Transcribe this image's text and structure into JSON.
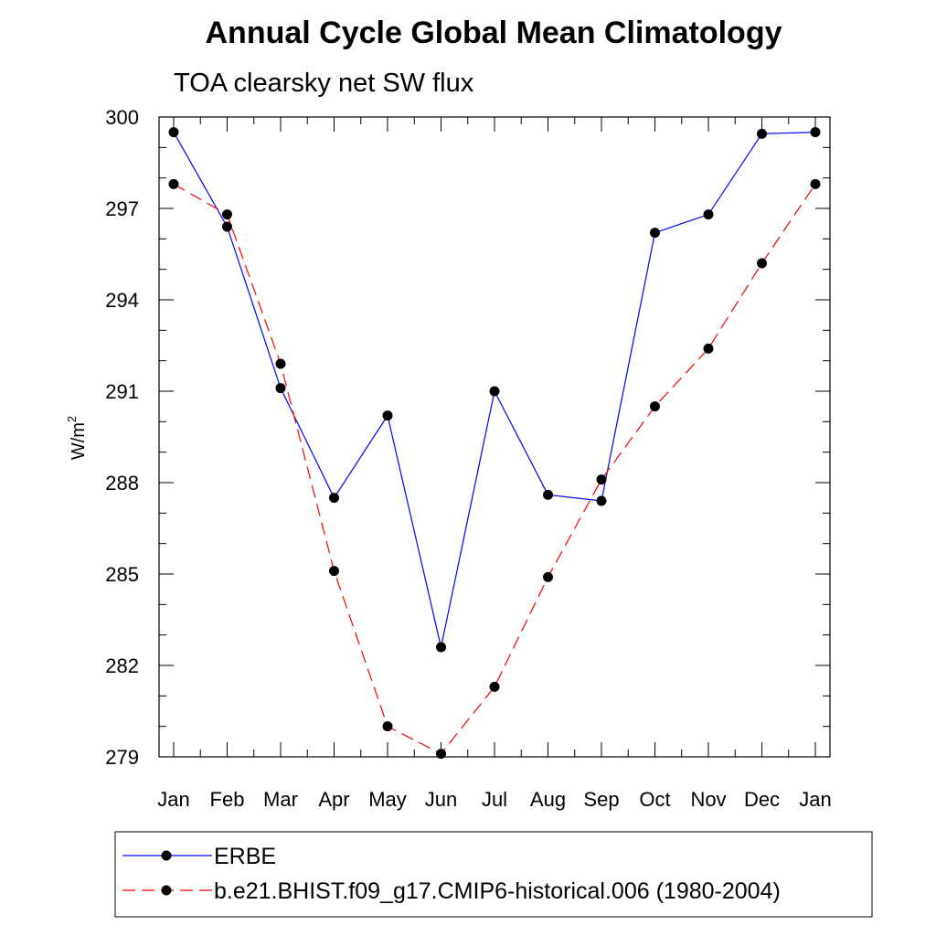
{
  "chart_data": {
    "type": "line",
    "title": "Annual Cycle Global Mean Climatology",
    "subtitle": "TOA clearsky net SW flux",
    "ylabel": "W/m",
    "ylabel_sup": "2",
    "xlabel": "",
    "categories": [
      "Jan",
      "Feb",
      "Mar",
      "Apr",
      "May",
      "Jun",
      "Jul",
      "Aug",
      "Sep",
      "Oct",
      "Nov",
      "Dec",
      "Jan"
    ],
    "ylim": [
      279,
      300
    ],
    "yticks": [
      279,
      282,
      285,
      288,
      291,
      294,
      297,
      300
    ],
    "grid": false,
    "legend_position": "bottom",
    "series": [
      {
        "name": "ERBE",
        "color": "#0000ff",
        "dash": "solid",
        "values": [
          299.5,
          296.4,
          291.1,
          287.5,
          290.2,
          282.6,
          291.0,
          287.6,
          287.4,
          296.2,
          296.8,
          299.45,
          299.5
        ]
      },
      {
        "name": "b.e21.BHIST.f09_g17.CMIP6-historical.006 (1980-2004)",
        "color": "#ff0000",
        "dash": "dashed",
        "values": [
          297.8,
          296.8,
          291.9,
          285.1,
          280.0,
          279.1,
          281.3,
          284.9,
          288.1,
          290.5,
          292.4,
          295.2,
          297.8
        ]
      }
    ]
  }
}
